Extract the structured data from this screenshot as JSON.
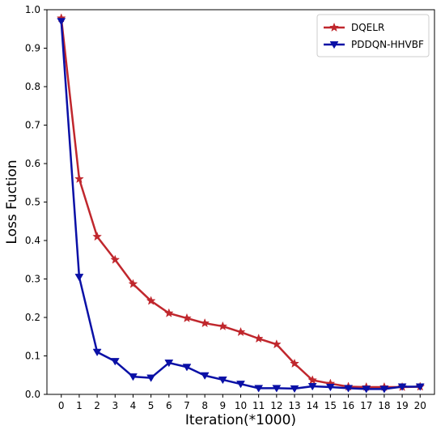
{
  "chart_data": {
    "type": "line",
    "title": "",
    "xlabel": "Iteration(*1000)",
    "ylabel": "Loss Fuction",
    "x": [
      0,
      1,
      2,
      3,
      4,
      5,
      6,
      7,
      8,
      9,
      10,
      11,
      12,
      13,
      14,
      15,
      16,
      17,
      18,
      19,
      20
    ],
    "xlim": [
      -0.8,
      20.8
    ],
    "ylim": [
      0,
      1.0
    ],
    "xticks": [
      0,
      1,
      2,
      3,
      4,
      5,
      6,
      7,
      8,
      9,
      10,
      11,
      12,
      13,
      14,
      15,
      16,
      17,
      18,
      19,
      20
    ],
    "yticks": [
      0.0,
      0.1,
      0.2,
      0.3,
      0.4,
      0.5,
      0.6,
      0.7,
      0.8,
      0.9,
      1.0
    ],
    "grid": false,
    "legend_position": "top-right",
    "series": [
      {
        "name": "DQELR",
        "color": "#c0272d",
        "marker": "star",
        "values": [
          0.978,
          0.56,
          0.41,
          0.35,
          0.287,
          0.243,
          0.211,
          0.198,
          0.185,
          0.177,
          0.162,
          0.145,
          0.13,
          0.08,
          0.037,
          0.028,
          0.02,
          0.019,
          0.019,
          0.019,
          0.02
        ]
      },
      {
        "name": "PDDQN-HHVBF",
        "color": "#0a10a6",
        "marker": "triangle-down",
        "values": [
          0.97,
          0.305,
          0.11,
          0.086,
          0.046,
          0.043,
          0.082,
          0.071,
          0.049,
          0.038,
          0.027,
          0.016,
          0.016,
          0.015,
          0.021,
          0.019,
          0.016,
          0.014,
          0.014,
          0.02,
          0.02
        ]
      }
    ]
  }
}
